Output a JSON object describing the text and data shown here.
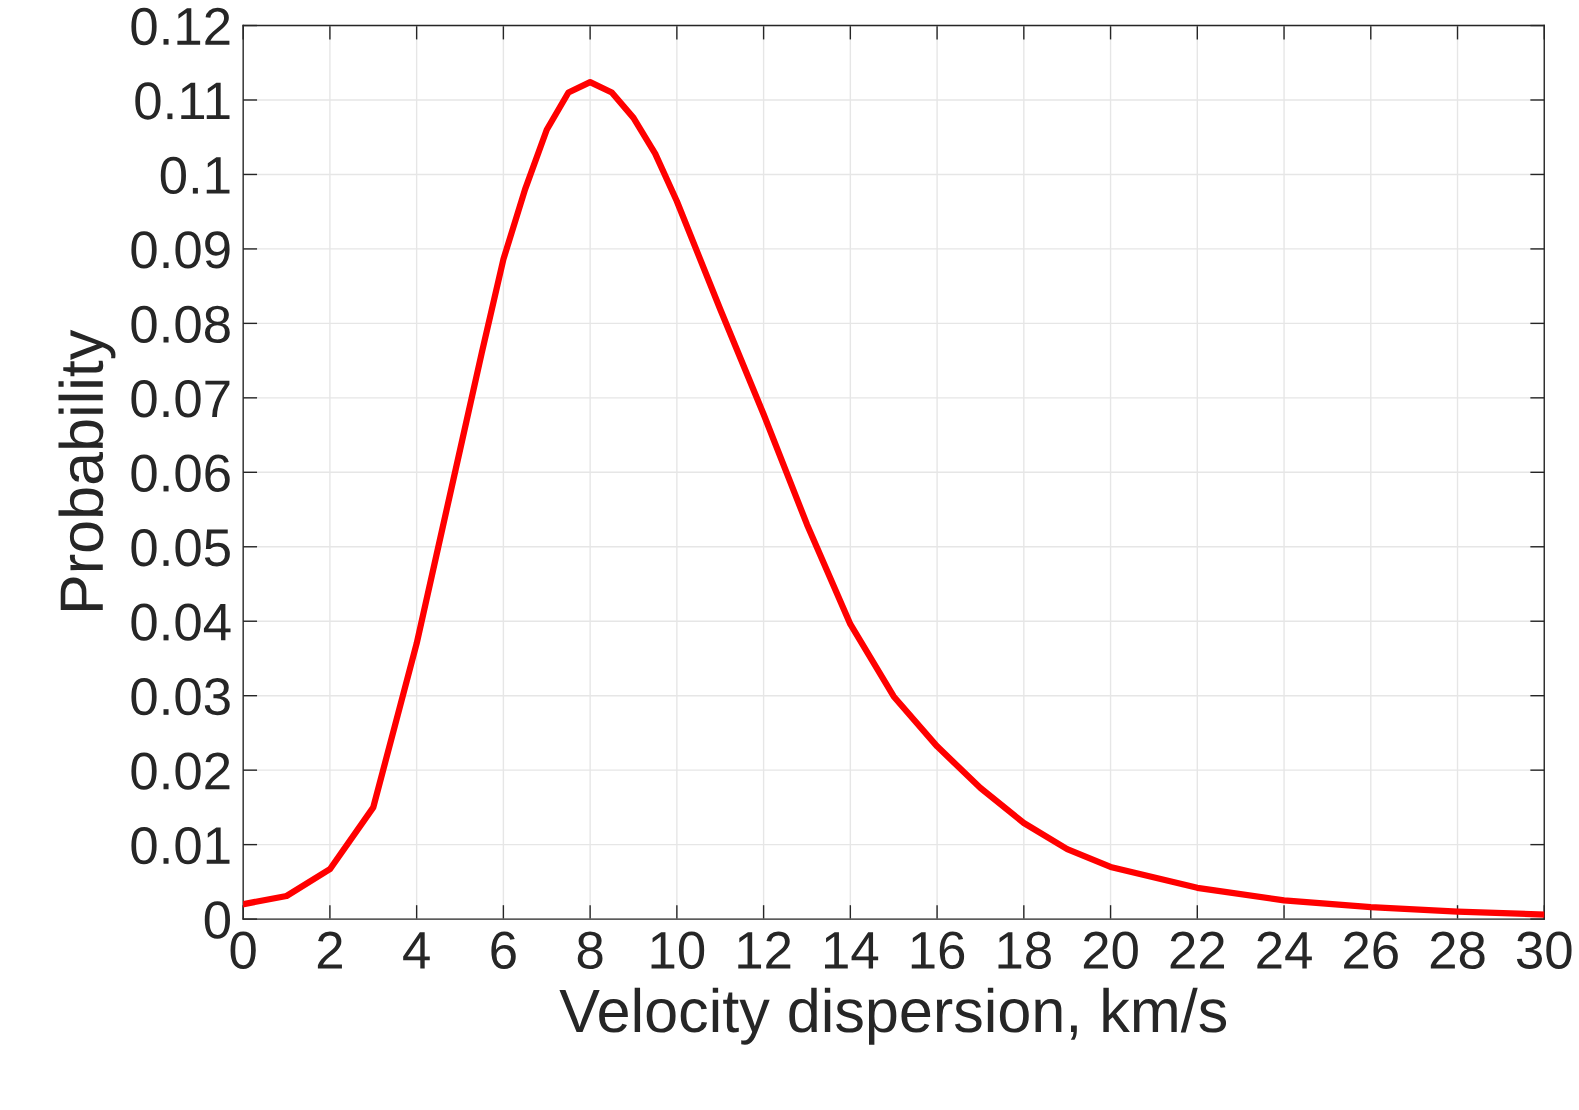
{
  "chart_data": {
    "type": "line",
    "xlabel": "Velocity dispersion, km/s",
    "ylabel": "Probability",
    "x": [
      0,
      1,
      2,
      3,
      3.5,
      4,
      4.5,
      5,
      5.5,
      6,
      6.5,
      7,
      7.5,
      8,
      8.5,
      9,
      9.5,
      10,
      11,
      12,
      13,
      14,
      15,
      16,
      17,
      18,
      19,
      20,
      22,
      24,
      26,
      28,
      30
    ],
    "series": [
      {
        "color": "#ff0000",
        "values": [
          0.002,
          0.0031,
          0.0067,
          0.015,
          0.026,
          0.037,
          0.05,
          0.063,
          0.076,
          0.0886,
          0.098,
          0.106,
          0.111,
          0.1124,
          0.111,
          0.1076,
          0.1028,
          0.0964,
          0.0819,
          0.0678,
          0.053,
          0.0396,
          0.0299,
          0.0232,
          0.0176,
          0.0129,
          0.0094,
          0.007,
          0.0042,
          0.0025,
          0.0016,
          0.001,
          0.0006
        ]
      }
    ],
    "xlim": [
      0,
      30
    ],
    "xticks": [
      0,
      2,
      4,
      6,
      8,
      10,
      12,
      14,
      16,
      18,
      20,
      22,
      24,
      26,
      28,
      30
    ],
    "ylim": [
      0,
      0.12
    ],
    "yticks": [
      0,
      0.01,
      0.02,
      0.03,
      0.04,
      0.05,
      0.06,
      0.07,
      0.08,
      0.09,
      0.1,
      0.11,
      0.12
    ],
    "grid": true,
    "marker": "none",
    "line_style": "solid"
  }
}
